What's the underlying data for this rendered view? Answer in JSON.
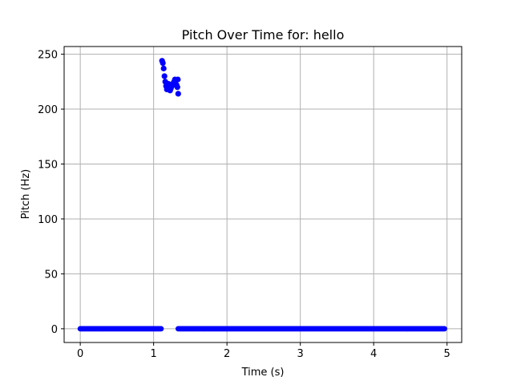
{
  "chart_data": {
    "type": "scatter",
    "title": "Pitch Over Time for: hello",
    "xlabel": "Time (s)",
    "ylabel": "Pitch (Hz)",
    "xlim": [
      -0.22,
      5.2
    ],
    "ylim": [
      -12.5,
      257
    ],
    "xticks": [
      0,
      1,
      2,
      3,
      4,
      5
    ],
    "yticks": [
      0,
      50,
      100,
      150,
      200,
      250
    ],
    "grid": true,
    "marker_color": "#0000ff",
    "series": [
      {
        "voiced": {
          "x": [
            1.115,
            1.126,
            1.137,
            1.148,
            1.159,
            1.17,
            1.181,
            1.192,
            1.203,
            1.214,
            1.225,
            1.236,
            1.247,
            1.258,
            1.269,
            1.28,
            1.291,
            1.302,
            1.313,
            1.324,
            1.33,
            1.335
          ],
          "y": [
            244,
            242,
            237,
            230,
            225,
            221,
            218,
            221,
            223,
            220,
            217,
            219,
            221,
            223,
            222,
            225,
            227,
            226,
            222,
            220,
            227,
            214
          ]
        },
        "unvoiced_ranges": [
          [
            0.0,
            1.11
          ],
          [
            1.335,
            4.97
          ]
        ],
        "unvoiced_value": 0,
        "unvoiced_step": 0.0116
      }
    ]
  }
}
